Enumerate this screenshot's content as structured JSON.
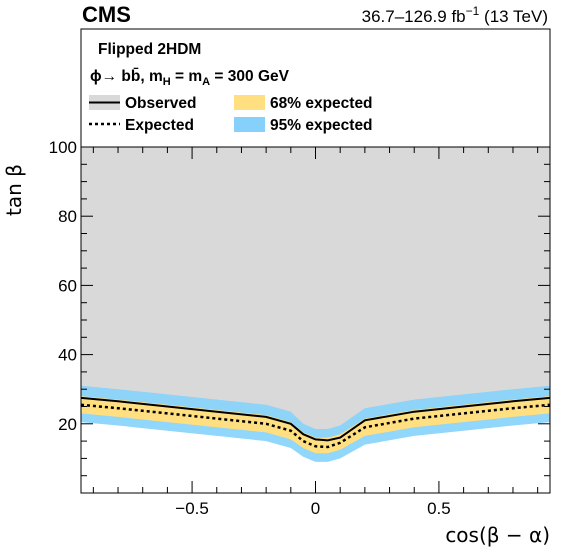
{
  "header": {
    "experiment": "CMS",
    "luminosity": "36.7–126.9 fb",
    "luminosity_exp": "−1",
    "energy": "(13 TeV)"
  },
  "legend": {
    "title": "Flipped 2HDM",
    "process": "ϕ→ bb̄, m",
    "process_sub1": "H",
    "process_mid": " = m",
    "process_sub2": "A",
    "process_end": " = 300 GeV",
    "observed": "Observed",
    "expected": "Expected",
    "band68": "68% expected",
    "band95": "95% expected",
    "placement": "top"
  },
  "colors": {
    "excluded": "#d9d9d9",
    "band68": "#ffdf7f",
    "band95": "#85d1fb",
    "line": "#000000"
  },
  "chart_data": {
    "type": "line",
    "xlabel": "cos(β − α)",
    "ylabel": "tan β",
    "xlim": [
      -0.95,
      0.95
    ],
    "ylim": [
      0,
      100
    ],
    "xticks": [
      -0.5,
      0,
      0.5
    ],
    "xtick_labels": [
      "−0.5",
      "0",
      "0.5"
    ],
    "yticks": [
      20,
      40,
      60,
      80,
      100
    ],
    "ytick_labels": [
      "20",
      "40",
      "60",
      "80",
      "100"
    ],
    "grid": false,
    "excluded_region": "above observed limit",
    "x": [
      -0.95,
      -0.8,
      -0.6,
      -0.4,
      -0.2,
      -0.1,
      -0.05,
      0,
      0.05,
      0.1,
      0.2,
      0.4,
      0.6,
      0.8,
      0.95
    ],
    "series": [
      {
        "name": "Observed",
        "values": [
          27.5,
          26.5,
          25,
          23.5,
          22,
          20,
          17,
          15.5,
          15.2,
          16,
          21,
          23.5,
          25,
          26.5,
          27.5
        ]
      },
      {
        "name": "Expected",
        "values": [
          25.5,
          24.5,
          23,
          21.5,
          20,
          18,
          15,
          13.5,
          13.3,
          14.5,
          19,
          21.5,
          23,
          24.5,
          25.5
        ]
      }
    ],
    "band68": {
      "lower": [
        23,
        22,
        20.5,
        19,
        17.5,
        15.5,
        13,
        11.5,
        11.5,
        12.5,
        16.5,
        19,
        20.5,
        22,
        23
      ],
      "upper": [
        28,
        27,
        25.5,
        24,
        22.5,
        20.5,
        17.5,
        16,
        16,
        17,
        21.5,
        24,
        25.5,
        27,
        28
      ]
    },
    "band95": {
      "lower": [
        20.5,
        19.5,
        18,
        16.5,
        15,
        13,
        10.5,
        9,
        9,
        10,
        14,
        16.5,
        18,
        19.5,
        20.5
      ],
      "upper": [
        31,
        30,
        28.5,
        27,
        25.5,
        23.5,
        20,
        18.5,
        18.5,
        19.5,
        24.5,
        27,
        28.5,
        30,
        31
      ]
    }
  }
}
